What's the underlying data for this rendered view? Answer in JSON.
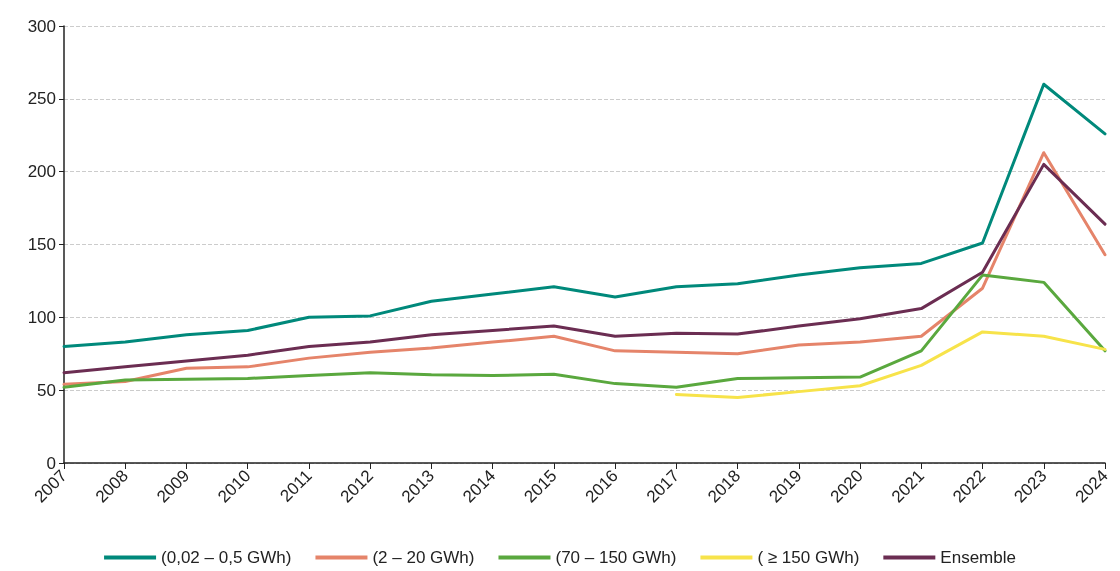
{
  "chart_data": {
    "type": "line",
    "categories": [
      "2007",
      "2008",
      "2009",
      "2010",
      "2011",
      "2012",
      "2013",
      "2014",
      "2015",
      "2016",
      "2017",
      "2018",
      "2019",
      "2020",
      "2021",
      "2022",
      "2023",
      "2024"
    ],
    "series": [
      {
        "name": "(0,02 – 0,5 GWh)",
        "color": "#00897b",
        "values": [
          80,
          83,
          88,
          91,
          100,
          101,
          111,
          116,
          121,
          114,
          121,
          123,
          129,
          134,
          137,
          151,
          260,
          226
        ]
      },
      {
        "name": "(2 – 20 GWh)",
        "color": "#e5846a",
        "values": [
          54,
          56,
          65,
          66,
          72,
          76,
          79,
          83,
          87,
          77,
          76,
          75,
          81,
          83,
          87,
          120,
          213,
          143
        ]
      },
      {
        "name": "(70 – 150 GWh)",
        "color": "#5aa83e",
        "values": [
          52,
          57,
          57.5,
          58,
          60,
          62,
          60.5,
          60,
          61,
          54.5,
          52,
          58,
          58.5,
          59,
          77,
          129,
          124,
          77
        ]
      },
      {
        "name": "( ≥ 150 GWh)",
        "color": "#f7e34a",
        "values": [
          null,
          null,
          null,
          null,
          null,
          null,
          null,
          null,
          null,
          null,
          47,
          45,
          49,
          53,
          67,
          90,
          87,
          78
        ]
      },
      {
        "name": "Ensemble",
        "color": "#6b2d52",
        "values": [
          62,
          66,
          70,
          74,
          80,
          83,
          88,
          91,
          94,
          87,
          89,
          88.5,
          94,
          99,
          106,
          131,
          205,
          164
        ]
      }
    ],
    "ylim": [
      0,
      300
    ],
    "yticks": [
      0,
      50,
      100,
      150,
      200,
      250,
      300
    ],
    "grid": "y",
    "legend": "bottom",
    "marker": "none",
    "line_style": "solid"
  }
}
